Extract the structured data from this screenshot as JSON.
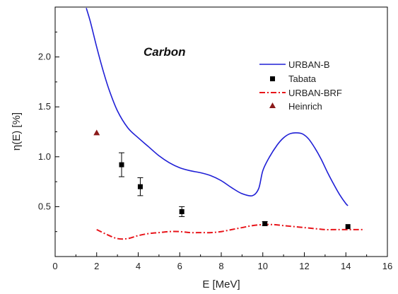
{
  "chart_data": {
    "type": "line",
    "title": "",
    "annotation": "Carbon",
    "xlabel": "E [MeV]",
    "ylabel": "η(E)  [%]",
    "xlim": [
      0,
      16
    ],
    "ylim": [
      0,
      2.5
    ],
    "x_ticks": [
      "0",
      "2",
      "4",
      "6",
      "8",
      "10",
      "12",
      "14",
      "16"
    ],
    "y_ticks": [
      "0.5",
      "1.0",
      "1.5",
      "2.0"
    ],
    "grid": false,
    "legend_position": "right",
    "series": [
      {
        "name": "URBAN-B",
        "kind": "line",
        "style": "solid",
        "color": "#1f1fd6",
        "x": [
          1.5,
          1.7,
          2.0,
          2.3,
          2.6,
          3.0,
          3.5,
          4.0,
          4.5,
          5.0,
          5.5,
          6.0,
          6.5,
          7.0,
          7.5,
          8.0,
          8.5,
          9.0,
          9.5,
          9.8,
          10.0,
          10.3,
          10.7,
          11.0,
          11.3,
          11.6,
          11.9,
          12.2,
          12.5,
          12.8,
          13.1,
          13.4,
          13.7,
          14.0,
          14.1
        ],
        "y": [
          2.49,
          2.35,
          2.1,
          1.87,
          1.67,
          1.46,
          1.29,
          1.19,
          1.1,
          1.01,
          0.94,
          0.89,
          0.86,
          0.84,
          0.81,
          0.76,
          0.69,
          0.63,
          0.61,
          0.68,
          0.86,
          0.99,
          1.12,
          1.19,
          1.23,
          1.24,
          1.23,
          1.18,
          1.09,
          0.98,
          0.85,
          0.73,
          0.62,
          0.53,
          0.51
        ]
      },
      {
        "name": "Tabata",
        "kind": "points",
        "marker": "square",
        "color": "#000000",
        "x": [
          3.2,
          4.1,
          6.1,
          10.1,
          14.1
        ],
        "y": [
          0.92,
          0.7,
          0.45,
          0.33,
          0.3
        ],
        "yerr": [
          0.12,
          0.09,
          0.05,
          0.02,
          0.0
        ]
      },
      {
        "name": "URBAN-BRF",
        "kind": "line",
        "style": "dash-dot",
        "color": "#e8141a",
        "x": [
          2.0,
          2.5,
          3.0,
          3.5,
          4.0,
          4.5,
          5.0,
          5.5,
          6.0,
          6.5,
          7.0,
          7.5,
          8.0,
          8.5,
          9.0,
          9.5,
          10.0,
          10.5,
          11.0,
          11.5,
          12.0,
          12.5,
          13.0,
          13.5,
          14.0,
          14.5,
          14.9
        ],
        "y": [
          0.27,
          0.22,
          0.18,
          0.18,
          0.21,
          0.23,
          0.24,
          0.25,
          0.25,
          0.24,
          0.24,
          0.24,
          0.25,
          0.27,
          0.29,
          0.31,
          0.32,
          0.32,
          0.31,
          0.3,
          0.29,
          0.28,
          0.27,
          0.27,
          0.27,
          0.27,
          0.27
        ]
      },
      {
        "name": "Heinrich",
        "kind": "points",
        "marker": "triangle",
        "color": "#8b1a1a",
        "x": [
          2.0
        ],
        "y": [
          1.24
        ]
      }
    ]
  }
}
